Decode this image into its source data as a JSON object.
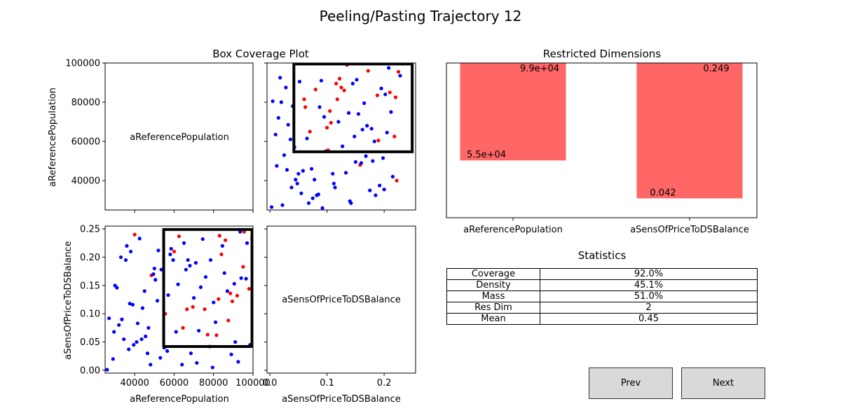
{
  "figure": {
    "title": "Peeling/Pasting Trajectory 12",
    "left_title": "Box Coverage Plot",
    "bar_title": "Restricted Dimensions",
    "stats_title": "Statistics"
  },
  "colors": {
    "box": "#000000",
    "in_class": "#ff0000",
    "out_class": "#0000ff",
    "bar": "#ff6666"
  },
  "buttons": {
    "prev": "Prev",
    "next": "Next"
  },
  "statistics": [
    {
      "label": "Coverage",
      "value": "92.0%"
    },
    {
      "label": "Density",
      "value": "45.1%"
    },
    {
      "label": "Mass",
      "value": "51.0%"
    },
    {
      "label": "Res Dim",
      "value": "2"
    },
    {
      "label": "Mean",
      "value": "0.45"
    }
  ],
  "chart_data": [
    {
      "type": "scatter",
      "name": "box-coverage-matrix",
      "dimensions": [
        "aReferencePopulation",
        "aSensOfPriceToDSBalance"
      ],
      "xlim_pop": [
        25000,
        100000
      ],
      "ylim_pop": [
        25000,
        100000
      ],
      "xlim_sens": [
        -0.005,
        0.255
      ],
      "ylim_sens": [
        -0.005,
        0.255
      ],
      "pop_ticks": [
        40000,
        60000,
        80000,
        100000
      ],
      "pop_tick_labels": [
        "40000",
        "60000",
        "80000",
        "100000"
      ],
      "sens_ticks": [
        0.0,
        0.1,
        0.2
      ],
      "sens_tick_labels": [
        "0.0",
        "0.1",
        "0.2"
      ],
      "sens_y_ticks": [
        0.0,
        0.05,
        0.1,
        0.15,
        0.2,
        0.25
      ],
      "sens_y_tick_labels": [
        "0.00",
        "0.05",
        "0.10",
        "0.15",
        "0.20",
        "0.25"
      ],
      "box": {
        "pop": [
          54700,
          99500
        ],
        "sens": [
          0.042,
          0.249
        ]
      },
      "points": [
        [
          26000,
          0.001,
          0
        ],
        [
          27000,
          0.092,
          0
        ],
        [
          29000,
          0.02,
          0
        ],
        [
          29500,
          0.068,
          0
        ],
        [
          30000,
          0.15,
          0
        ],
        [
          31000,
          0.146,
          0
        ],
        [
          32000,
          0.08,
          0
        ],
        [
          33000,
          0.2,
          0
        ],
        [
          33500,
          0.09,
          0
        ],
        [
          34500,
          0.055,
          0
        ],
        [
          35500,
          0.195,
          0
        ],
        [
          36000,
          0.22,
          0
        ],
        [
          37000,
          0.037,
          0
        ],
        [
          37500,
          0.118,
          0
        ],
        [
          38000,
          0.21,
          0
        ],
        [
          39000,
          0.116,
          0
        ],
        [
          39500,
          0.045,
          0
        ],
        [
          40000,
          0.24,
          1
        ],
        [
          41000,
          0.05,
          0
        ],
        [
          41500,
          0.083,
          0
        ],
        [
          42500,
          0.233,
          0
        ],
        [
          43500,
          0.055,
          0
        ],
        [
          44000,
          0.11,
          0
        ],
        [
          45000,
          0.14,
          0
        ],
        [
          45500,
          0.06,
          0
        ],
        [
          46500,
          0.03,
          0
        ],
        [
          47000,
          0.075,
          0
        ],
        [
          48000,
          0.01,
          0
        ],
        [
          48500,
          0.168,
          1
        ],
        [
          49500,
          0.17,
          0
        ],
        [
          50000,
          0.18,
          0
        ],
        [
          50500,
          0.16,
          0
        ],
        [
          51500,
          0.123,
          0
        ],
        [
          52000,
          0.212,
          0
        ],
        [
          53000,
          0.022,
          0
        ],
        [
          53500,
          0.178,
          0
        ],
        [
          55000,
          0.04,
          0
        ],
        [
          55500,
          0.1,
          1
        ],
        [
          56500,
          0.034,
          0
        ],
        [
          57000,
          0.133,
          0
        ],
        [
          58000,
          0.205,
          0
        ],
        [
          58500,
          0.215,
          0
        ],
        [
          59500,
          0.195,
          0
        ],
        [
          60000,
          0.21,
          1
        ],
        [
          61000,
          0.068,
          0
        ],
        [
          62000,
          0.152,
          0
        ],
        [
          62500,
          0.237,
          1
        ],
        [
          64000,
          0.01,
          0
        ],
        [
          64500,
          0.075,
          1
        ],
        [
          65000,
          0.225,
          0
        ],
        [
          66000,
          0.178,
          0
        ],
        [
          66500,
          0.108,
          1
        ],
        [
          67000,
          0.195,
          0
        ],
        [
          68000,
          0.185,
          0
        ],
        [
          68500,
          0.03,
          0
        ],
        [
          69500,
          0.112,
          1
        ],
        [
          70000,
          0.128,
          0
        ],
        [
          71000,
          0.19,
          0
        ],
        [
          71500,
          0.013,
          0
        ],
        [
          72500,
          0.07,
          0
        ],
        [
          73500,
          0.147,
          0
        ],
        [
          74500,
          0.232,
          0
        ],
        [
          75500,
          0.108,
          1
        ],
        [
          76000,
          0.165,
          0
        ],
        [
          77000,
          0.063,
          1
        ],
        [
          78000,
          0.042,
          0
        ],
        [
          78500,
          0.195,
          0
        ],
        [
          79500,
          0.005,
          0
        ],
        [
          80000,
          0.12,
          0
        ],
        [
          81000,
          0.085,
          0
        ],
        [
          81500,
          0.062,
          1
        ],
        [
          82500,
          0.126,
          1
        ],
        [
          83000,
          0.238,
          1
        ],
        [
          84000,
          0.205,
          1
        ],
        [
          84500,
          0.22,
          0
        ],
        [
          85500,
          0.172,
          0
        ],
        [
          86000,
          0.23,
          1
        ],
        [
          87000,
          0.14,
          0
        ],
        [
          87500,
          0.088,
          1
        ],
        [
          88500,
          0.136,
          1
        ],
        [
          89000,
          0.028,
          0
        ],
        [
          89500,
          0.122,
          1
        ],
        [
          90500,
          0.153,
          0
        ],
        [
          91000,
          0.05,
          0
        ],
        [
          92000,
          0.132,
          1
        ],
        [
          92500,
          0.015,
          0
        ],
        [
          93500,
          0.245,
          0
        ],
        [
          94000,
          0.163,
          0
        ],
        [
          95000,
          0.183,
          1
        ],
        [
          95500,
          0.245,
          1
        ],
        [
          96500,
          0.162,
          0
        ],
        [
          97000,
          0.225,
          0
        ],
        [
          98000,
          0.144,
          1
        ],
        [
          98500,
          0.045,
          0
        ],
        [
          99500,
          0.233,
          1
        ]
      ],
      "sens_pop_points": [
        [
          0.003,
          26500,
          0
        ],
        [
          0.005,
          80500,
          0
        ],
        [
          0.01,
          63500,
          0
        ],
        [
          0.012,
          47500,
          0
        ],
        [
          0.015,
          72000,
          0
        ],
        [
          0.018,
          92500,
          0
        ],
        [
          0.02,
          80000,
          0
        ],
        [
          0.022,
          27500,
          0
        ],
        [
          0.025,
          53000,
          0
        ],
        [
          0.028,
          87500,
          0
        ],
        [
          0.03,
          45500,
          0
        ],
        [
          0.032,
          68500,
          0
        ],
        [
          0.036,
          61000,
          0
        ],
        [
          0.038,
          36500,
          0
        ],
        [
          0.04,
          78000,
          0
        ],
        [
          0.043,
          57000,
          0
        ],
        [
          0.045,
          40500,
          0
        ],
        [
          0.048,
          38500,
          0
        ],
        [
          0.05,
          43500,
          0
        ],
        [
          0.052,
          90500,
          0
        ],
        [
          0.055,
          33500,
          0
        ],
        [
          0.058,
          45000,
          0
        ],
        [
          0.06,
          81500,
          1
        ],
        [
          0.062,
          77500,
          1
        ],
        [
          0.065,
          61500,
          0
        ],
        [
          0.068,
          28500,
          0
        ],
        [
          0.07,
          65000,
          1
        ],
        [
          0.073,
          46000,
          0
        ],
        [
          0.075,
          31000,
          0
        ],
        [
          0.078,
          40500,
          0
        ],
        [
          0.08,
          86500,
          1
        ],
        [
          0.082,
          32500,
          0
        ],
        [
          0.085,
          33000,
          0
        ],
        [
          0.087,
          77500,
          0
        ],
        [
          0.09,
          91000,
          0
        ],
        [
          0.092,
          26000,
          0
        ],
        [
          0.095,
          72500,
          0
        ],
        [
          0.098,
          55000,
          0
        ],
        [
          0.1,
          67000,
          1
        ],
        [
          0.102,
          55500,
          1
        ],
        [
          0.105,
          75500,
          1
        ],
        [
          0.107,
          69500,
          1
        ],
        [
          0.11,
          43500,
          0
        ],
        [
          0.112,
          38500,
          0
        ],
        [
          0.114,
          36500,
          0
        ],
        [
          0.116,
          89500,
          1
        ],
        [
          0.118,
          81500,
          1
        ],
        [
          0.12,
          70000,
          0
        ],
        [
          0.122,
          92000,
          1
        ],
        [
          0.125,
          87500,
          1
        ],
        [
          0.127,
          57500,
          0
        ],
        [
          0.13,
          86000,
          1
        ],
        [
          0.133,
          44000,
          0
        ],
        [
          0.135,
          99000,
          1
        ],
        [
          0.138,
          74500,
          0
        ],
        [
          0.14,
          29500,
          0
        ],
        [
          0.142,
          28500,
          0
        ],
        [
          0.145,
          89500,
          0
        ],
        [
          0.148,
          62500,
          0
        ],
        [
          0.15,
          49500,
          0
        ],
        [
          0.152,
          91500,
          0
        ],
        [
          0.155,
          74000,
          0
        ],
        [
          0.158,
          48000,
          1
        ],
        [
          0.16,
          49000,
          0
        ],
        [
          0.162,
          66000,
          0
        ],
        [
          0.165,
          79500,
          0
        ],
        [
          0.168,
          52500,
          0
        ],
        [
          0.17,
          68000,
          0
        ],
        [
          0.172,
          96000,
          1
        ],
        [
          0.175,
          35000,
          0
        ],
        [
          0.178,
          66500,
          0
        ],
        [
          0.18,
          50000,
          0
        ],
        [
          0.183,
          60000,
          0
        ],
        [
          0.185,
          32500,
          0
        ],
        [
          0.188,
          83500,
          1
        ],
        [
          0.19,
          60500,
          1
        ],
        [
          0.192,
          37500,
          0
        ],
        [
          0.195,
          87000,
          0
        ],
        [
          0.198,
          51500,
          0
        ],
        [
          0.2,
          35500,
          0
        ],
        [
          0.202,
          84000,
          0
        ],
        [
          0.205,
          64500,
          0
        ],
        [
          0.208,
          97500,
          0
        ],
        [
          0.21,
          85000,
          1
        ],
        [
          0.212,
          75000,
          0
        ],
        [
          0.215,
          42000,
          0
        ],
        [
          0.218,
          62500,
          1
        ],
        [
          0.22,
          82500,
          1
        ],
        [
          0.222,
          40000,
          1
        ],
        [
          0.225,
          95500,
          1
        ],
        [
          0.228,
          93500,
          0
        ]
      ]
    },
    {
      "type": "bar",
      "name": "restricted-dimensions",
      "categories": [
        "aReferencePopulation",
        "aSensOfPriceToDSBalance"
      ],
      "lower": [
        0.37,
        0.125
      ],
      "upper": [
        1.0,
        1.0
      ],
      "lower_labels": [
        "5.5e+04",
        "0.042"
      ],
      "upper_labels": [
        "9.9e+04",
        "0.249"
      ],
      "ylim": [
        0.0,
        1.0
      ]
    }
  ]
}
